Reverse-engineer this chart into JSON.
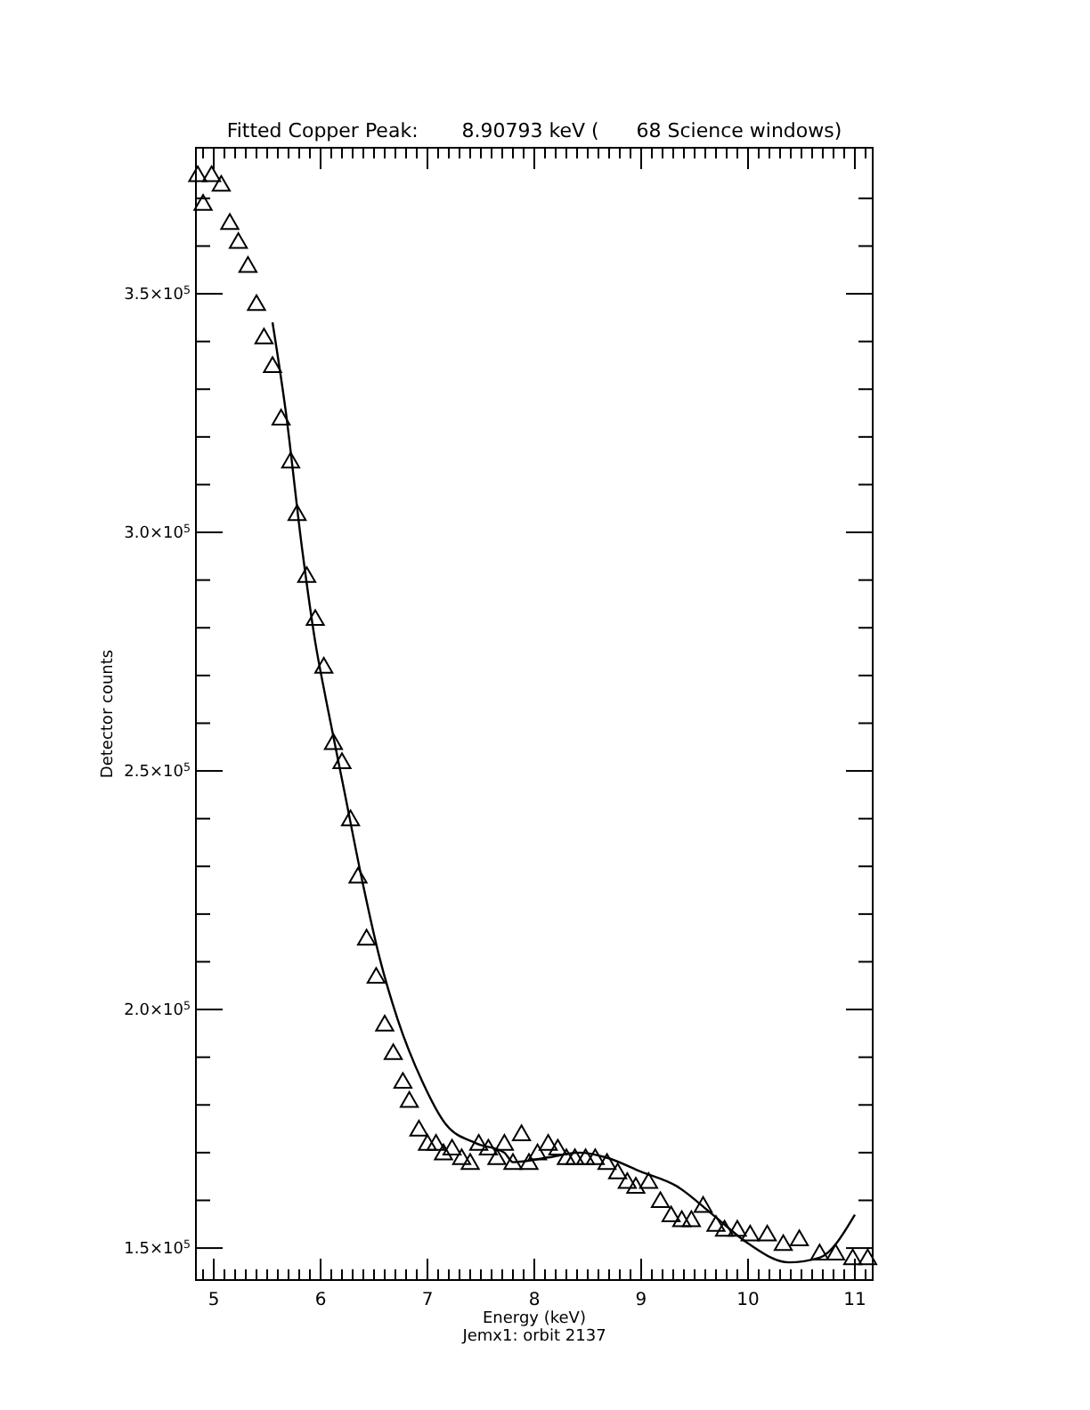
{
  "chart_data": {
    "type": "scatter",
    "title": "Fitted Copper Peak:       8.90793 keV (      68 Science windows)",
    "xlabel": "Energy (keV)",
    "ylabel": "Detector counts",
    "annotations": [
      "Jemx1: orbit 2137"
    ],
    "xlim": [
      4.833,
      11.167
    ],
    "ylim": [
      143300,
      380600
    ],
    "xticks": [
      {
        "value": 4.9,
        "label": null
      },
      5,
      {
        "value": 5.1,
        "label": null
      },
      {
        "value": 5.2,
        "label": null
      },
      {
        "value": 5.3,
        "label": null
      },
      {
        "value": 5.4,
        "label": null
      },
      {
        "value": 5.5,
        "label": null
      },
      {
        "value": 5.6,
        "label": null
      },
      {
        "value": 5.7,
        "label": null
      },
      {
        "value": 5.8,
        "label": null
      },
      {
        "value": 5.9,
        "label": null
      },
      6,
      {
        "value": 6.1,
        "label": null
      },
      {
        "value": 6.2,
        "label": null
      },
      {
        "value": 6.3,
        "label": null
      },
      {
        "value": 6.4,
        "label": null
      },
      {
        "value": 6.5,
        "label": null
      },
      {
        "value": 6.6,
        "label": null
      },
      {
        "value": 6.7,
        "label": null
      },
      {
        "value": 6.8,
        "label": null
      },
      {
        "value": 6.9,
        "label": null
      },
      7,
      {
        "value": 7.1,
        "label": null
      },
      {
        "value": 7.2,
        "label": null
      },
      {
        "value": 7.3,
        "label": null
      },
      {
        "value": 7.4,
        "label": null
      },
      {
        "value": 7.5,
        "label": null
      },
      {
        "value": 7.6,
        "label": null
      },
      {
        "value": 7.7,
        "label": null
      },
      {
        "value": 7.8,
        "label": null
      },
      {
        "value": 7.9,
        "label": null
      },
      8,
      {
        "value": 8.1,
        "label": null
      },
      {
        "value": 8.2,
        "label": null
      },
      {
        "value": 8.3,
        "label": null
      },
      {
        "value": 8.4,
        "label": null
      },
      {
        "value": 8.5,
        "label": null
      },
      {
        "value": 8.6,
        "label": null
      },
      {
        "value": 8.7,
        "label": null
      },
      {
        "value": 8.8,
        "label": null
      },
      {
        "value": 8.9,
        "label": null
      },
      9,
      {
        "value": 9.1,
        "label": null
      },
      {
        "value": 9.2,
        "label": null
      },
      {
        "value": 9.3,
        "label": null
      },
      {
        "value": 9.4,
        "label": null
      },
      {
        "value": 9.5,
        "label": null
      },
      {
        "value": 9.6,
        "label": null
      },
      {
        "value": 9.7,
        "label": null
      },
      {
        "value": 9.8,
        "label": null
      },
      {
        "value": 9.9,
        "label": null
      },
      10,
      {
        "value": 10.1,
        "label": null
      },
      {
        "value": 10.2,
        "label": null
      },
      {
        "value": 10.3,
        "label": null
      },
      {
        "value": 10.4,
        "label": null
      },
      {
        "value": 10.5,
        "label": null
      },
      {
        "value": 10.6,
        "label": null
      },
      {
        "value": 10.7,
        "label": null
      },
      {
        "value": 10.8,
        "label": null
      },
      {
        "value": 10.9,
        "label": null
      },
      11,
      {
        "value": 11.1,
        "label": null
      }
    ],
    "yticks": [
      {
        "value": 150000,
        "label": "1.5×10$^{5}$"
      },
      {
        "value": 160000,
        "label": null
      },
      {
        "value": 170000,
        "label": null
      },
      {
        "value": 180000,
        "label": null
      },
      {
        "value": 190000,
        "label": null
      },
      {
        "value": 200000,
        "label": "2.0×10$^{5}$"
      },
      {
        "value": 210000,
        "label": null
      },
      {
        "value": 220000,
        "label": null
      },
      {
        "value": 230000,
        "label": null
      },
      {
        "value": 240000,
        "label": null
      },
      {
        "value": 250000,
        "label": "2.5×10$^{5}$"
      },
      {
        "value": 260000,
        "label": null
      },
      {
        "value": 270000,
        "label": null
      },
      {
        "value": 280000,
        "label": null
      },
      {
        "value": 290000,
        "label": null
      },
      {
        "value": 300000,
        "label": "3.0×10$^{5}$"
      },
      {
        "value": 310000,
        "label": null
      },
      {
        "value": 320000,
        "label": null
      },
      {
        "value": 330000,
        "label": null
      },
      {
        "value": 340000,
        "label": null
      },
      {
        "value": 350000,
        "label": "3.5×10$^{5}$"
      },
      {
        "value": 360000,
        "label": null
      },
      {
        "value": 370000,
        "label": null
      }
    ],
    "grid": false,
    "series": [
      {
        "marker": "triangle",
        "color": "#000000",
        "x": [
          4.85,
          4.9,
          4.98,
          5.07,
          5.15,
          5.23,
          5.32,
          5.4,
          5.47,
          5.55,
          5.63,
          5.72,
          5.78,
          5.87,
          5.95,
          6.03,
          6.12,
          6.2,
          6.28,
          6.35,
          6.43,
          6.52,
          6.6,
          6.68,
          6.77,
          6.83,
          6.92,
          7.0,
          7.08,
          7.15,
          7.23,
          7.32,
          7.4,
          7.48,
          7.57,
          7.65,
          7.72,
          7.8,
          7.88,
          7.95,
          8.03,
          8.13,
          8.22,
          8.3,
          8.38,
          8.48,
          8.57,
          8.68,
          8.78,
          8.87,
          8.95,
          9.07,
          9.18,
          9.28,
          9.38,
          9.47,
          9.58,
          9.7,
          9.78,
          9.9,
          10.02,
          10.18,
          10.33,
          10.48,
          10.67,
          10.82,
          10.98,
          11.12
        ],
        "values": [
          375000,
          369000,
          375000,
          373000,
          365000,
          361000,
          356000,
          348000,
          341000,
          335000,
          324000,
          315000,
          304000,
          291000,
          282000,
          272000,
          256000,
          252000,
          240000,
          228000,
          215000,
          207000,
          197000,
          191000,
          185000,
          181000,
          175000,
          172000,
          172000,
          170000,
          171000,
          169000,
          168000,
          172000,
          171000,
          169000,
          172000,
          168000,
          174000,
          168000,
          170000,
          172000,
          171000,
          169000,
          169000,
          169000,
          169000,
          168000,
          166000,
          164000,
          163000,
          164000,
          160000,
          157000,
          156000,
          156000,
          159000,
          155000,
          154000,
          154000,
          153000,
          153000,
          151000,
          152000,
          149000,
          149000,
          148000,
          148000
        ]
      },
      {
        "type": "line",
        "marker": "none",
        "line_style": "solid",
        "color": "#000000",
        "x": [
          5.55,
          5.67,
          5.83,
          5.95,
          6.05,
          6.22,
          6.38,
          6.55,
          6.72,
          6.95,
          7.17,
          7.45,
          7.72,
          7.8,
          8.13,
          8.42,
          8.67,
          9.0,
          9.33,
          9.67,
          10.0,
          10.38,
          10.67,
          11.0
        ],
        "values": [
          344000,
          326000,
          296000,
          277000,
          265000,
          246000,
          228000,
          211000,
          198000,
          185000,
          176000,
          172000,
          170000,
          168000,
          169000,
          170000,
          169000,
          166000,
          163000,
          157000,
          151000,
          147000,
          148000,
          157000
        ]
      }
    ]
  }
}
